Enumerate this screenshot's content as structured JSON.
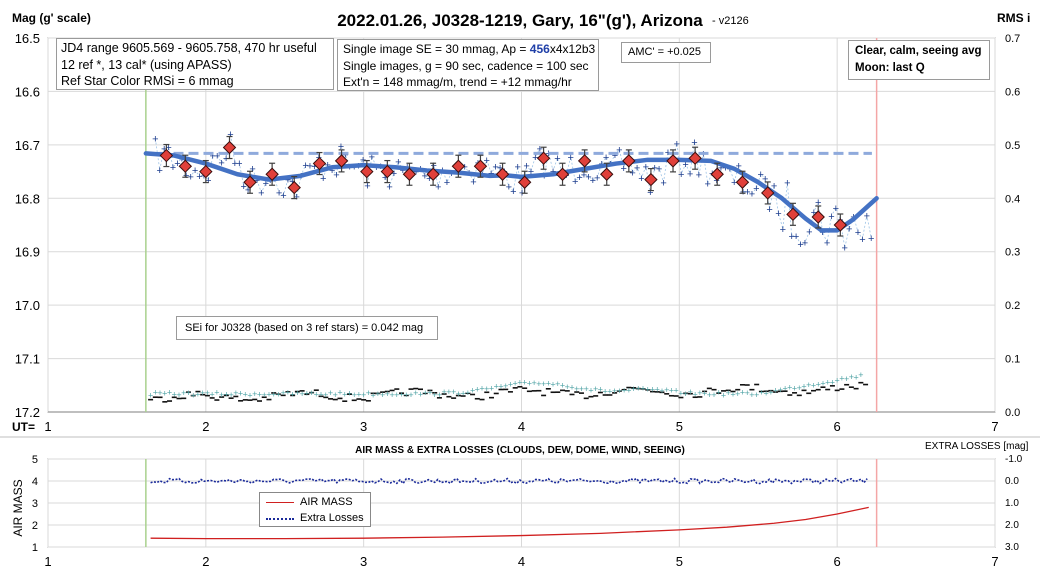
{
  "chart_data": [
    {
      "type": "scatter",
      "title": "2022.01.26, J0328-1219, Gary, 16\"(g'), Arizona",
      "version_tag": "- v2126",
      "ylabel": "Mag (g' scale)",
      "y2label": "RMS i",
      "xlabel": "UT=",
      "xlim": [
        1,
        7
      ],
      "ylim": [
        16.5,
        17.2
      ],
      "y2lim": [
        0.0,
        0.7
      ],
      "x_ticks": [
        "1",
        "2",
        "3",
        "4",
        "5",
        "6",
        "7"
      ],
      "y_ticks": [
        "16.5",
        "16.6",
        "16.7",
        "16.8",
        "16.9",
        "17.0",
        "17.1",
        "17.2"
      ],
      "y2_ticks": [
        "0.7",
        "0.6",
        "0.5",
        "0.4",
        "0.3",
        "0.2",
        "0.1",
        "0.0"
      ],
      "grid": true,
      "start_ut": 1.62,
      "end_ut": 6.25,
      "dashed_level_mag": 16.716,
      "annotations": {
        "box1": [
          "JD4 range 9605.569 - 9605.758, 470 hr useful",
          "12 ref *, 13 cal* (using APASS)",
          "Ref Star Color RMSi = 6 mmag"
        ],
        "box2_line1_pre": "Single image SE = 30 mmag, Ap = ",
        "box2_line1_sel": "456",
        "box2_line1_post": "x4x12b3",
        "box2_lines": [
          "Single images, g = 90 sec, cadence = 100 sec",
          "Ext'n = 148 mmag/m, trend = +12 mmag/hr"
        ],
        "amc": "AMC' = +0.025",
        "conditions": [
          "Clear, calm, seeing avg",
          "Moon: last Q"
        ],
        "sei": "SEi for J0328 (based on 3 ref stars) = 0.042 mag"
      },
      "series": [
        {
          "kind": "binned_means",
          "x": [
            1.75,
            1.87,
            2.0,
            2.15,
            2.28,
            2.42,
            2.56,
            2.72,
            2.86,
            3.02,
            3.15,
            3.29,
            3.44,
            3.6,
            3.74,
            3.88,
            4.02,
            4.14,
            4.26,
            4.4,
            4.54,
            4.68,
            4.82,
            4.96,
            5.1,
            5.24,
            5.4,
            5.56,
            5.72,
            5.88,
            6.02
          ],
          "values": [
            16.72,
            16.74,
            16.75,
            16.705,
            16.77,
            16.755,
            16.78,
            16.735,
            16.73,
            16.75,
            16.75,
            16.755,
            16.755,
            16.74,
            16.74,
            16.755,
            16.77,
            16.725,
            16.755,
            16.73,
            16.755,
            16.73,
            16.765,
            16.73,
            16.725,
            16.755,
            16.77,
            16.79,
            16.83,
            16.835,
            16.85
          ]
        },
        {
          "kind": "smooth_trend",
          "x": [
            1.62,
            1.8,
            2.0,
            2.2,
            2.4,
            2.6,
            2.8,
            3.0,
            3.2,
            3.4,
            3.6,
            3.8,
            3.9,
            4.0,
            4.2,
            4.4,
            4.6,
            4.8,
            5.0,
            5.2,
            5.35,
            5.5,
            5.65,
            5.8,
            5.9,
            6.0,
            6.1,
            6.25
          ],
          "values": [
            16.716,
            16.72,
            16.735,
            16.755,
            16.765,
            16.758,
            16.742,
            16.738,
            16.742,
            16.748,
            16.752,
            16.758,
            16.757,
            16.76,
            16.755,
            16.745,
            16.735,
            16.728,
            16.728,
            16.73,
            16.745,
            16.77,
            16.8,
            16.838,
            16.86,
            16.86,
            16.84,
            16.8
          ]
        }
      ]
    },
    {
      "type": "line",
      "title": "AIR MASS & EXTRA LOSSES (CLOUDS, DEW, DOME, WIND, SEEING)",
      "ylabel": "AIR MASS",
      "y2label": "EXTRA LOSSES [mag]",
      "xlim": [
        1,
        7
      ],
      "ylim": [
        1,
        5
      ],
      "y2lim": [
        3.0,
        -1.0
      ],
      "x_ticks": [
        "1",
        "2",
        "3",
        "4",
        "5",
        "6",
        "7"
      ],
      "y_ticks": [
        "5",
        "4",
        "3",
        "2",
        "1"
      ],
      "y2_ticks": [
        "-1.0",
        "0.0",
        "1.0",
        "2.0",
        "3.0"
      ],
      "series": [
        {
          "name": "AIR MASS",
          "color": "#d02020",
          "x": [
            1.65,
            2.0,
            2.5,
            3.0,
            3.5,
            4.0,
            4.5,
            5.0,
            5.3,
            5.6,
            5.8,
            6.0,
            6.2
          ],
          "values": [
            1.4,
            1.38,
            1.38,
            1.4,
            1.45,
            1.52,
            1.62,
            1.78,
            1.9,
            2.08,
            2.25,
            2.5,
            2.8
          ]
        },
        {
          "name": "Extra Losses",
          "color": "#1a2a9a",
          "x": [
            1.65,
            6.2
          ],
          "values": [
            0.0,
            0.0
          ]
        }
      ]
    }
  ]
}
